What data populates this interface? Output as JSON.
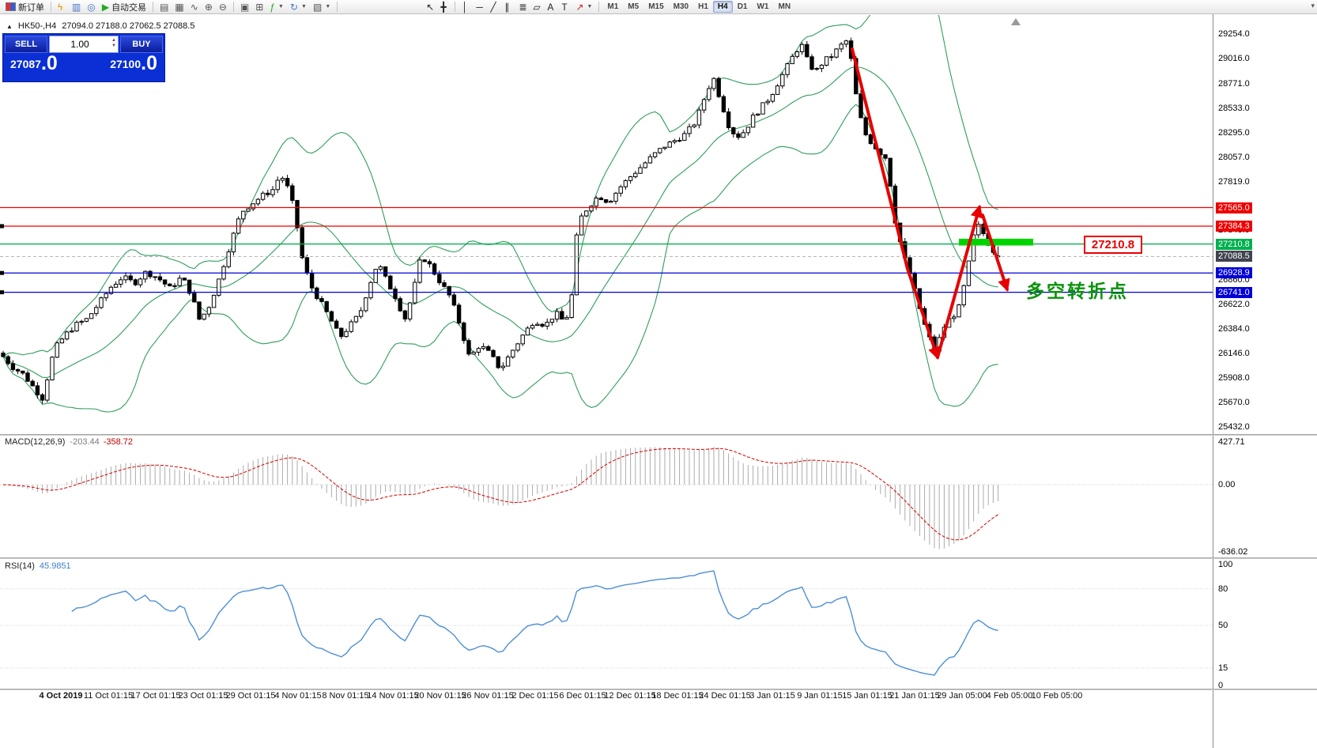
{
  "toolbar": {
    "new_order_label": "新订单",
    "auto_trading_label": "自动交易",
    "groups": [
      [
        {
          "name": "new-order",
          "composite": true,
          "label_key": "new_order_label"
        }
      ],
      [
        {
          "name": "lightning",
          "glyph": "ϟ",
          "color": "#dd9900"
        },
        {
          "name": "market-watch",
          "glyph": "▥",
          "color": "#4a76c8"
        },
        {
          "name": "data-window",
          "glyph": "◎",
          "color": "#4a76c8"
        },
        {
          "name": "auto-trading",
          "glyph": "▶",
          "color": "#22aa22",
          "label_key": "auto_trading_label"
        }
      ],
      [
        {
          "name": "bar-chart",
          "glyph": "▤",
          "color": "#555555"
        },
        {
          "name": "candlestick-chart",
          "glyph": "▦",
          "color": "#555555"
        },
        {
          "name": "line-chart",
          "glyph": "∿",
          "color": "#555555"
        },
        {
          "name": "zoom-in",
          "glyph": "⊕",
          "color": "#555555"
        },
        {
          "name": "zoom-out",
          "glyph": "⊖",
          "color": "#555555"
        }
      ],
      [
        {
          "name": "tile-windows",
          "glyph": "▣",
          "color": "#555555"
        },
        {
          "name": "auto-arrange",
          "glyph": "⊞",
          "color": "#555555"
        },
        {
          "name": "indicators",
          "glyph": "ƒ",
          "color": "#22aa22",
          "dropdown": true
        },
        {
          "name": "periods",
          "glyph": "↻",
          "color": "#4a76c8",
          "dropdown": true
        },
        {
          "name": "templates",
          "glyph": "▧",
          "color": "#555555",
          "dropdown": true
        }
      ],
      [
        {
          "name": "cursor",
          "glyph": "↖",
          "color": "#222222"
        },
        {
          "name": "crosshair",
          "glyph": "╋",
          "color": "#222222"
        }
      ],
      [
        {
          "name": "vertical-line",
          "glyph": "│",
          "color": "#222222"
        },
        {
          "name": "horizontal-line",
          "glyph": "─",
          "color": "#222222"
        },
        {
          "name": "trendline",
          "glyph": "╱",
          "color": "#222222"
        },
        {
          "name": "channel",
          "glyph": "∥",
          "color": "#222222"
        },
        {
          "name": "fibonacci",
          "glyph": "≣",
          "color": "#222222"
        },
        {
          "name": "shapes",
          "glyph": "▱",
          "color": "#222222"
        },
        {
          "name": "text",
          "glyph": "A",
          "color": "#222222"
        },
        {
          "name": "text-label",
          "glyph": "T",
          "color": "#222222"
        },
        {
          "name": "arrows",
          "glyph": "↗",
          "color": "#cc2222",
          "dropdown": true
        }
      ]
    ],
    "timeframes": [
      "M1",
      "M5",
      "M15",
      "M30",
      "H1",
      "H4",
      "D1",
      "W1",
      "MN"
    ],
    "active_timeframe": "H4",
    "overflow_glyph": "▾"
  },
  "chart": {
    "symbol_label": "HK50-,H4",
    "ohlc_label": "27094.0 27188.0 27062.5 27088.5",
    "trade_panel": {
      "sell_label": "SELL",
      "buy_label": "BUY",
      "volume": "1.00",
      "sell_price": "27087.0",
      "buy_price": "27100.0",
      "sell_display": [
        "27087",
        ".0"
      ],
      "buy_display": [
        "27100",
        ".0"
      ]
    },
    "annotations": {
      "price_tag": "27210.8",
      "note": "多空转折点",
      "green_zone": {
        "x": 1213,
        "width": 94,
        "price_top": 27262,
        "price_bottom": 27196,
        "color": "#00d400"
      },
      "trend_arrows": {
        "color": "#e60000",
        "width": 4,
        "lines": [
          {
            "points": [
              [
                1078,
                62
              ],
              [
                1148,
                340
              ],
              [
                1186,
                452
              ]
            ]
          },
          {
            "points": [
              [
                1186,
                452
              ],
              [
                1239,
                262
              ]
            ]
          },
          {
            "points": [
              [
                1243,
                272
              ],
              [
                1274,
                366
              ]
            ]
          }
        ]
      }
    }
  },
  "indicators": {
    "macd": {
      "label": "MACD(12,26,9)",
      "value1": "-203.44",
      "value2": "-358.72",
      "scale": [
        "427.71",
        "0.00",
        "-636.02"
      ],
      "histogram_color": "#ababab",
      "signal_color": "#d40000"
    },
    "rsi": {
      "label": "RSI(14)",
      "value": "45.9851",
      "scale": [
        "100",
        "80",
        "50",
        "15",
        "0"
      ],
      "levels": [
        80,
        50,
        15
      ],
      "line_color": "#4d8fd6"
    }
  },
  "chart_data": {
    "type": "candlestick",
    "title": "HK50-,H4",
    "timeframe": "H4",
    "ohlc_current": {
      "open": 27094.0,
      "high": 27188.0,
      "low": 27062.5,
      "close": 27088.5
    },
    "ylim": [
      25363,
      29446
    ],
    "y_axis_labels": [
      {
        "text": "29254.0",
        "type": "plain",
        "price": 29254.0
      },
      {
        "text": "29016.0",
        "type": "plain",
        "price": 29016.0
      },
      {
        "text": "28771.0",
        "type": "plain",
        "price": 28771.0
      },
      {
        "text": "28533.0",
        "type": "plain",
        "price": 28533.0
      },
      {
        "text": "28295.0",
        "type": "plain",
        "price": 28295.0
      },
      {
        "text": "28057.0",
        "type": "plain",
        "price": 28057.0
      },
      {
        "text": "27819.0",
        "type": "plain",
        "price": 27819.0
      },
      {
        "text": "27343.0",
        "type": "plain",
        "price": 27343.0
      },
      {
        "text": "26860.0",
        "type": "plain",
        "price": 26860.0
      },
      {
        "text": "26622.0",
        "type": "plain",
        "price": 26622.0
      },
      {
        "text": "26384.0",
        "type": "plain",
        "price": 26384.0
      },
      {
        "text": "26146.0",
        "type": "plain",
        "price": 26146.0
      },
      {
        "text": "25908.0",
        "type": "plain",
        "price": 25908.0
      },
      {
        "text": "25670.0",
        "type": "plain",
        "price": 25670.0
      },
      {
        "text": "25432.0",
        "type": "plain",
        "price": 25432.0
      },
      {
        "text": "27565.0",
        "type": "red",
        "price": 27565.0
      },
      {
        "text": "27384.3",
        "type": "red",
        "price": 27384.3
      },
      {
        "text": "27210.8",
        "type": "green",
        "price": 27210.8
      },
      {
        "text": "27088.5",
        "type": "dark",
        "price": 27088.5
      },
      {
        "text": "26928.9",
        "type": "blue",
        "price": 26928.9
      },
      {
        "text": "26741.0",
        "type": "blue",
        "price": 26741.0
      }
    ],
    "price_lines": [
      {
        "price": 27565.0,
        "color": "#ef0000",
        "width": 1.2
      },
      {
        "price": 27384.3,
        "color": "#ef0000",
        "width": 1.2,
        "handle": true
      },
      {
        "price": 27210.8,
        "color": "#00b050",
        "width": 1.4
      },
      {
        "price": 26928.9,
        "color": "#0000d8",
        "width": 1.2,
        "handle": true
      },
      {
        "price": 26741.0,
        "color": "#0000d8",
        "width": 1.2,
        "handle": true
      }
    ],
    "current_price_line": {
      "price": 27088.5,
      "color": "#b8b8b8",
      "dash": "4,3"
    },
    "x_axis_labels": [
      "4 Oct 2019",
      "11 Oct 01:15",
      "17 Oct 01:15",
      "23 Oct 01:15",
      "29 Oct 01:15",
      "4 Nov 01:15",
      "8 Nov 01:15",
      "14 Nov 01:15",
      "20 Nov 01:15",
      "26 Nov 01:15",
      "2 Dec 01:15",
      "6 Dec 01:15",
      "12 Dec 01:15",
      "18 Dec 01:15",
      "24 Dec 01:15",
      "3 Jan 01:15",
      "9 Jan 01:15",
      "15 Jan 01:15",
      "21 Jan 01:15",
      "29 Jan 05:00",
      "4 Feb 05:00",
      "10 Feb 05:00"
    ],
    "candle_count": 204,
    "bollinger": {
      "period": 20,
      "deviation": 2,
      "color": "#2f9e5b"
    },
    "macd_params": [
      12,
      26,
      9
    ],
    "rsi_period": 14,
    "close_waypoints": [
      [
        0,
        26150
      ],
      [
        15,
        26020
      ],
      [
        30,
        25940
      ],
      [
        45,
        25790
      ],
      [
        55,
        25700
      ],
      [
        62,
        26000
      ],
      [
        70,
        26200
      ],
      [
        82,
        26320
      ],
      [
        95,
        26420
      ],
      [
        110,
        26480
      ],
      [
        125,
        26630
      ],
      [
        140,
        26790
      ],
      [
        155,
        26890
      ],
      [
        170,
        26830
      ],
      [
        185,
        26940
      ],
      [
        200,
        26880
      ],
      [
        215,
        26780
      ],
      [
        230,
        26890
      ],
      [
        242,
        26720
      ],
      [
        252,
        26480
      ],
      [
        262,
        26560
      ],
      [
        275,
        26820
      ],
      [
        290,
        27180
      ],
      [
        305,
        27520
      ],
      [
        318,
        27600
      ],
      [
        332,
        27680
      ],
      [
        345,
        27740
      ],
      [
        355,
        27890
      ],
      [
        365,
        27740
      ],
      [
        373,
        27520
      ],
      [
        382,
        27080
      ],
      [
        392,
        26820
      ],
      [
        405,
        26650
      ],
      [
        418,
        26480
      ],
      [
        430,
        26300
      ],
      [
        443,
        26420
      ],
      [
        455,
        26530
      ],
      [
        468,
        26830
      ],
      [
        478,
        27030
      ],
      [
        488,
        26870
      ],
      [
        500,
        26700
      ],
      [
        512,
        26480
      ],
      [
        522,
        26720
      ],
      [
        533,
        27100
      ],
      [
        543,
        27010
      ],
      [
        556,
        26850
      ],
      [
        570,
        26690
      ],
      [
        582,
        26420
      ],
      [
        594,
        26100
      ],
      [
        607,
        26230
      ],
      [
        620,
        26140
      ],
      [
        633,
        25990
      ],
      [
        648,
        26170
      ],
      [
        662,
        26330
      ],
      [
        676,
        26470
      ],
      [
        690,
        26420
      ],
      [
        703,
        26540
      ],
      [
        714,
        26450
      ],
      [
        722,
        26600
      ],
      [
        731,
        27420
      ],
      [
        743,
        27560
      ],
      [
        757,
        27680
      ],
      [
        770,
        27620
      ],
      [
        784,
        27760
      ],
      [
        798,
        27870
      ],
      [
        812,
        27970
      ],
      [
        826,
        28070
      ],
      [
        840,
        28160
      ],
      [
        854,
        28220
      ],
      [
        867,
        28280
      ],
      [
        880,
        28400
      ],
      [
        892,
        28650
      ],
      [
        902,
        28840
      ],
      [
        912,
        28600
      ],
      [
        922,
        28360
      ],
      [
        932,
        28250
      ],
      [
        942,
        28310
      ],
      [
        952,
        28440
      ],
      [
        963,
        28540
      ],
      [
        974,
        28640
      ],
      [
        985,
        28790
      ],
      [
        996,
        28940
      ],
      [
        1006,
        29080
      ],
      [
        1014,
        29150
      ],
      [
        1023,
        28960
      ],
      [
        1032,
        28890
      ],
      [
        1042,
        28990
      ],
      [
        1052,
        29040
      ],
      [
        1062,
        29130
      ],
      [
        1073,
        29200
      ],
      [
        1083,
        28650
      ],
      [
        1092,
        28310
      ],
      [
        1102,
        28200
      ],
      [
        1112,
        28110
      ],
      [
        1122,
        28040
      ],
      [
        1132,
        27450
      ],
      [
        1142,
        27120
      ],
      [
        1152,
        26900
      ],
      [
        1162,
        26620
      ],
      [
        1172,
        26360
      ],
      [
        1183,
        26160
      ],
      [
        1192,
        26380
      ],
      [
        1202,
        26490
      ],
      [
        1212,
        26560
      ],
      [
        1222,
        26880
      ],
      [
        1232,
        27300
      ],
      [
        1239,
        27400
      ],
      [
        1247,
        27260
      ],
      [
        1255,
        27160
      ],
      [
        1264,
        27088
      ]
    ]
  }
}
